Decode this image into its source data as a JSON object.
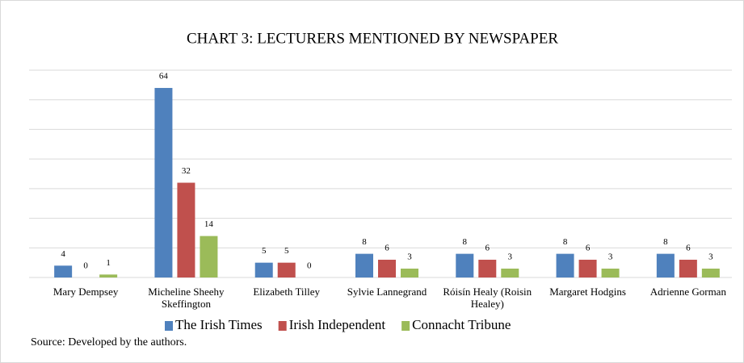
{
  "chart_data": {
    "type": "bar",
    "title": "CHART 3: LECTURERS MENTIONED BY NEWSPAPER",
    "categories": [
      "Mary Dempsey",
      "Micheline Sheehy Skeffington",
      "Elizabeth Tilley",
      "Sylvie Lannegrand",
      "Róisín Healy (Roisin Healey)",
      "Margaret Hodgins",
      "Adrienne Gorman"
    ],
    "series": [
      {
        "name": "The Irish Times",
        "color": "#4f81bd",
        "values": [
          4,
          64,
          5,
          8,
          8,
          8,
          8
        ]
      },
      {
        "name": "Irish Independent",
        "color": "#c0504d",
        "values": [
          0,
          32,
          5,
          6,
          6,
          6,
          6
        ]
      },
      {
        "name": "Connacht Tribune",
        "color": "#9bbb59",
        "values": [
          1,
          14,
          0,
          3,
          3,
          3,
          3
        ]
      }
    ],
    "ylim": [
      0,
      70
    ],
    "yticks": [
      0,
      10,
      20,
      30,
      40,
      50,
      60,
      70
    ],
    "grid": true,
    "legend": "bottom",
    "source": "Source: Developed by the authors."
  }
}
